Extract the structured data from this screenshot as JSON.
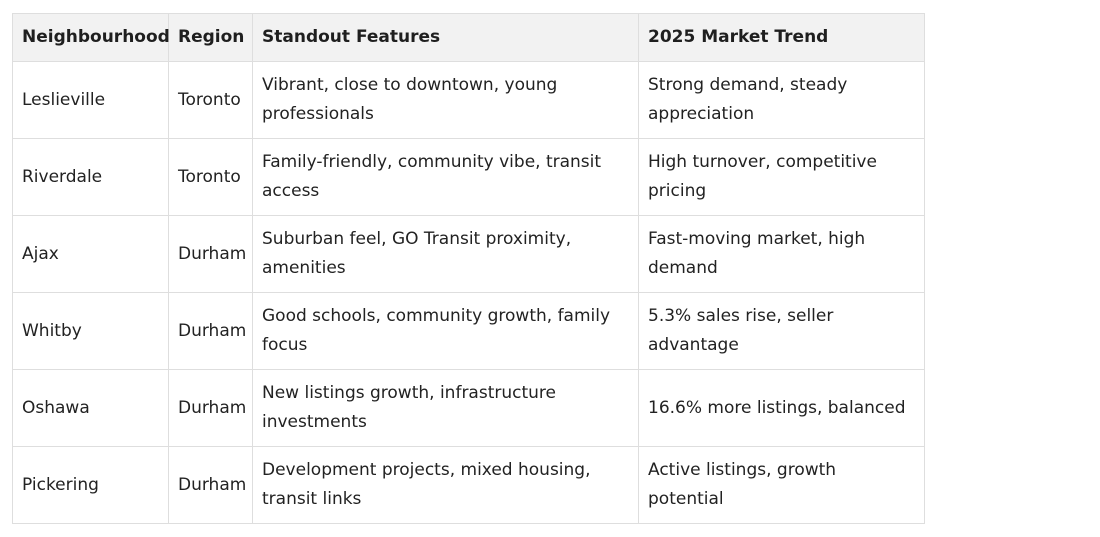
{
  "table": {
    "headers": [
      "Neighbourhood",
      "Region",
      "Standout Features",
      "2025 Market Trend"
    ],
    "rows": [
      [
        "Leslieville",
        "Toronto",
        "Vibrant, close to downtown, young professionals",
        "Strong demand, steady appreciation"
      ],
      [
        "Riverdale",
        "Toronto",
        "Family-friendly, community vibe, transit access",
        "High turnover, competitive pricing"
      ],
      [
        "Ajax",
        "Durham",
        "Suburban feel, GO Transit proximity, amenities",
        "Fast-moving market, high demand"
      ],
      [
        "Whitby",
        "Durham",
        "Good schools, community growth, family focus",
        "5.3% sales rise, seller advantage"
      ],
      [
        "Oshawa",
        "Durham",
        "New listings growth, infrastructure investments",
        "16.6% more listings, balanced"
      ],
      [
        "Pickering",
        "Durham",
        "Development projects, mixed housing, transit links",
        "Active listings, growth potential"
      ]
    ]
  }
}
